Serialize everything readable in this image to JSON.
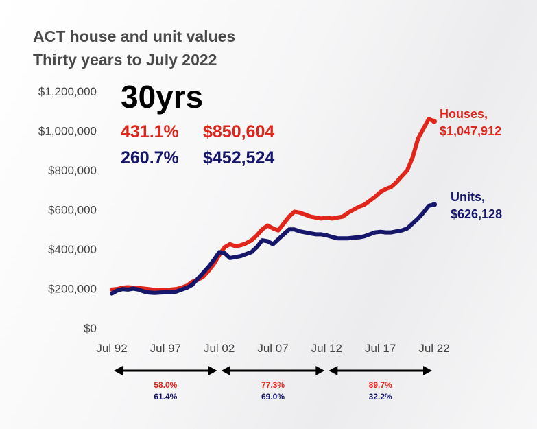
{
  "chart_data": {
    "type": "line",
    "title": "ACT house and unit values",
    "subtitle": "Thirty years to July 2022",
    "ylim": [
      0,
      1200000
    ],
    "y_ticks": [
      0,
      200000,
      400000,
      600000,
      800000,
      1000000,
      1200000
    ],
    "y_tick_labels": [
      "$0",
      "$200,000",
      "$400,000",
      "$600,000",
      "$800,000",
      "$1,000,000",
      "$1,200,000"
    ],
    "x_tick_labels": [
      "Jul 92",
      "Jul 97",
      "Jul 02",
      "Jul 07",
      "Jul 12",
      "Jul 17",
      "Jul 22"
    ],
    "x_tick_years": [
      1992.5,
      1997.5,
      2002.5,
      2007.5,
      2012.5,
      2017.5,
      2022.5
    ],
    "xlim": [
      1992.5,
      2022.5
    ],
    "series": [
      {
        "name": "Houses",
        "color": "#e0261b",
        "x": [
          1992.5,
          1993.0,
          1993.5,
          1994.0,
          1994.5,
          1995.0,
          1995.5,
          1996.0,
          1996.5,
          1997.0,
          1997.5,
          1998.0,
          1998.5,
          1999.0,
          1999.5,
          2000.0,
          2000.5,
          2001.0,
          2001.5,
          2002.0,
          2002.5,
          2003.0,
          2003.5,
          2004.0,
          2004.5,
          2005.0,
          2005.5,
          2006.0,
          2006.5,
          2007.0,
          2007.5,
          2008.0,
          2008.5,
          2009.0,
          2009.5,
          2010.0,
          2010.5,
          2011.0,
          2011.5,
          2012.0,
          2012.5,
          2013.0,
          2013.5,
          2014.0,
          2014.5,
          2015.0,
          2015.5,
          2016.0,
          2016.5,
          2017.0,
          2017.5,
          2018.0,
          2018.5,
          2019.0,
          2019.5,
          2020.0,
          2020.5,
          2021.0,
          2021.5,
          2022.0,
          2022.5
        ],
        "values": [
          195000,
          198000,
          205000,
          207000,
          205000,
          203000,
          200000,
          197000,
          193000,
          192000,
          193000,
          195000,
          198000,
          205000,
          215000,
          235000,
          245000,
          260000,
          290000,
          325000,
          370000,
          410000,
          425000,
          415000,
          420000,
          430000,
          445000,
          470000,
          500000,
          520000,
          505000,
          495000,
          530000,
          565000,
          590000,
          585000,
          575000,
          565000,
          560000,
          555000,
          560000,
          555000,
          560000,
          565000,
          585000,
          600000,
          615000,
          625000,
          645000,
          665000,
          690000,
          705000,
          715000,
          740000,
          770000,
          800000,
          865000,
          960000,
          1010000,
          1060000,
          1047912
        ]
      },
      {
        "name": "Units",
        "color": "#16166b",
        "x": [
          1992.5,
          1993.0,
          1993.5,
          1994.0,
          1994.5,
          1995.0,
          1995.5,
          1996.0,
          1996.5,
          1997.0,
          1997.5,
          1998.0,
          1998.5,
          1999.0,
          1999.5,
          2000.0,
          2000.5,
          2001.0,
          2001.5,
          2002.0,
          2002.5,
          2003.0,
          2003.5,
          2004.0,
          2004.5,
          2005.0,
          2005.5,
          2006.0,
          2006.5,
          2007.0,
          2007.5,
          2008.0,
          2008.5,
          2009.0,
          2009.5,
          2010.0,
          2010.5,
          2011.0,
          2011.5,
          2012.0,
          2012.5,
          2013.0,
          2013.5,
          2014.0,
          2014.5,
          2015.0,
          2015.5,
          2016.0,
          2016.5,
          2017.0,
          2017.5,
          2018.0,
          2018.5,
          2019.0,
          2019.5,
          2020.0,
          2020.5,
          2021.0,
          2021.5,
          2022.0,
          2022.5
        ],
        "values": [
          175000,
          190000,
          198000,
          195000,
          200000,
          195000,
          185000,
          180000,
          178000,
          180000,
          182000,
          182000,
          185000,
          195000,
          205000,
          220000,
          250000,
          280000,
          310000,
          345000,
          385000,
          380000,
          355000,
          360000,
          365000,
          375000,
          385000,
          410000,
          445000,
          440000,
          425000,
          450000,
          475000,
          500000,
          500000,
          490000,
          485000,
          480000,
          475000,
          475000,
          470000,
          462000,
          455000,
          455000,
          455000,
          458000,
          460000,
          465000,
          475000,
          485000,
          488000,
          485000,
          485000,
          490000,
          495000,
          505000,
          530000,
          555000,
          585000,
          620000,
          626128
        ]
      }
    ]
  },
  "headline": "30yrs",
  "stats": {
    "houses_pct": "431.1%",
    "houses_change": "$850,604",
    "units_pct": "260.7%",
    "units_change": "$452,524"
  },
  "end_labels": {
    "houses_name": "Houses,",
    "houses_value": "$1,047,912",
    "units_name": "Units,",
    "units_value": "$626,128"
  },
  "periods": [
    {
      "houses": "58.0%",
      "units": "61.4%"
    },
    {
      "houses": "77.3%",
      "units": "69.0%"
    },
    {
      "houses": "89.7%",
      "units": "32.2%"
    }
  ],
  "colors": {
    "houses": "#e0261b",
    "units": "#16166b"
  }
}
